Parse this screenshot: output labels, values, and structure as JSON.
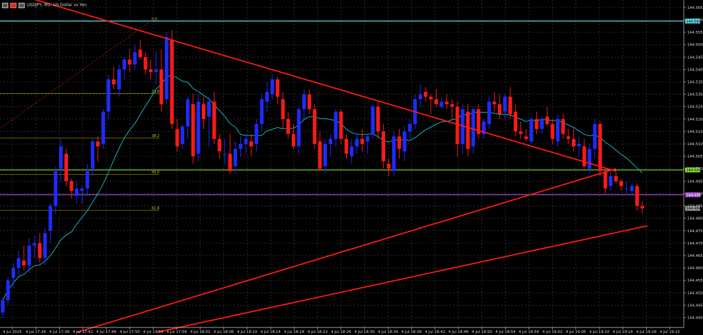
{
  "window": {
    "title": "USDJPY, M1:  US Dollar vs Yen"
  },
  "colors": {
    "background": "#000000",
    "grid": "#4a4a4a",
    "bull_candle": "#1f2bff",
    "bear_candle": "#ff1a1a",
    "moving_average": "#18b6c0",
    "trendline": "#ff1a1a",
    "fib_line": "#8a8500",
    "fib_label": "#d6cf3a",
    "line_cyan": "#5ad8e6",
    "line_green": "#86e33a",
    "line_purple": "#a44ecf",
    "axis_text": "#d9d9d9"
  },
  "chart_data": {
    "type": "candlestick",
    "symbol": "USDJPY",
    "timeframe": "M1",
    "xlabel": "",
    "ylabel": "",
    "ylim": [
      144.436,
      144.568
    ],
    "y_ticks": [
      "144.440",
      "144.445",
      "144.450",
      "144.455",
      "144.460",
      "144.465",
      "144.470",
      "144.475",
      "144.480",
      "144.485",
      "144.490",
      "144.495",
      "144.500",
      "144.505",
      "144.510",
      "144.515",
      "144.520",
      "144.525",
      "144.530",
      "144.535",
      "144.540",
      "144.545",
      "144.550",
      "144.555",
      "144.560",
      "144.565"
    ],
    "x_ticks": [
      "4 Jul 2025",
      "4 Jul 17:34",
      "4 Jul 17:38",
      "4 Jul 17:42",
      "4 Jul 17:46",
      "4 Jul 17:50",
      "4 Jul 17:54",
      "4 Jul 17:58",
      "4 Jul 18:02",
      "4 Jul 18:06",
      "4 Jul 18:10",
      "4 Jul 18:14",
      "4 Jul 18:18",
      "4 Jul 18:22",
      "4 Jul 18:26",
      "4 Jul 18:30",
      "4 Jul 18:34",
      "4 Jul 18:38",
      "4 Jul 18:42",
      "4 Jul 18:46",
      "4 Jul 18:50",
      "4 Jul 18:54",
      "4 Jul 18:58",
      "4 Jul 19:02",
      "4 Jul 19:06",
      "4 Jul 19:10",
      "4 Jul 19:14",
      "4 Jul 19:18",
      "4 Jul 19:22"
    ],
    "price_tags": [
      {
        "label": "144.560",
        "value": 144.5595,
        "bg": "#5ad8e6",
        "fg": "#000000"
      },
      {
        "label": "144.500",
        "value": 144.4995,
        "bg": "#86e33a",
        "fg": "#000000"
      },
      {
        "label": "144.490",
        "value": 144.4895,
        "bg": "#a44ecf",
        "fg": "#ffffff"
      },
      {
        "label": "144.484",
        "value": 144.484,
        "bg": "#9a9a9a",
        "fg": "#000000"
      }
    ],
    "horizontal_lines": [
      {
        "name": "cyan-level",
        "value": 144.5595,
        "color": "#5ad8e6"
      },
      {
        "name": "green-level",
        "value": 144.4995,
        "color": "#86e33a"
      },
      {
        "name": "purple-level",
        "value": 144.4895,
        "color": "#a44ecf"
      }
    ],
    "fibonacci": {
      "high": 144.5595,
      "low": 144.436,
      "levels": [
        {
          "label": "0.0",
          "ratio": 0.0
        },
        {
          "label": "23.6",
          "ratio": 0.236
        },
        {
          "label": "38.2",
          "ratio": 0.382
        },
        {
          "label": "50.0",
          "ratio": 0.5
        },
        {
          "label": "61.8",
          "ratio": 0.618
        }
      ]
    },
    "trendlines": [
      {
        "name": "descending-trendline",
        "points": [
          [
            0,
            144.572
          ],
          [
            116,
            144.499
          ]
        ]
      },
      {
        "name": "rising-trendline-upper",
        "points": [
          [
            14,
            144.434
          ],
          [
            116,
            144.5
          ]
        ]
      },
      {
        "name": "rising-trendline-lower",
        "points": [
          [
            29,
            144.434
          ],
          [
            122,
            144.477
          ]
        ]
      },
      {
        "name": "fib-diagonal",
        "points": [
          [
            -1,
            144.5155
          ],
          [
            28,
            144.5595
          ]
        ]
      }
    ],
    "ma_period": 14,
    "candles_ohlc": [
      [
        144.442,
        144.448,
        144.44,
        144.447
      ],
      [
        144.447,
        144.456,
        144.445,
        144.455
      ],
      [
        144.456,
        144.462,
        144.452,
        144.46
      ],
      [
        144.46,
        144.467,
        144.457,
        144.464
      ],
      [
        144.463,
        144.469,
        144.459,
        144.461
      ],
      [
        144.461,
        144.472,
        144.458,
        144.469
      ],
      [
        144.469,
        144.473,
        144.464,
        144.47
      ],
      [
        144.47,
        144.474,
        144.462,
        144.464
      ],
      [
        144.464,
        144.476,
        144.461,
        144.474
      ],
      [
        144.475,
        144.486,
        144.47,
        144.485
      ],
      [
        144.485,
        144.501,
        144.482,
        144.499
      ],
      [
        144.5,
        144.512,
        144.495,
        144.509
      ],
      [
        144.506,
        144.508,
        144.493,
        144.495
      ],
      [
        144.495,
        144.496,
        144.488,
        144.491
      ],
      [
        144.489,
        144.495,
        144.486,
        144.492
      ],
      [
        144.491,
        144.493,
        144.486,
        144.492
      ],
      [
        144.492,
        144.502,
        144.489,
        144.499
      ],
      [
        144.5,
        144.512,
        144.497,
        144.511
      ],
      [
        144.511,
        144.513,
        144.503,
        144.509
      ],
      [
        144.51,
        144.524,
        144.508,
        144.523
      ],
      [
        144.523,
        144.538,
        144.52,
        144.536
      ],
      [
        144.536,
        144.541,
        144.532,
        144.534
      ],
      [
        144.532,
        144.542,
        144.529,
        144.54
      ],
      [
        144.54,
        144.545,
        144.536,
        144.544
      ],
      [
        144.544,
        144.548,
        144.539,
        144.542
      ],
      [
        144.542,
        144.55,
        144.54,
        144.547
      ],
      [
        144.548,
        144.552,
        144.544,
        144.545
      ],
      [
        144.545,
        144.547,
        144.538,
        144.54
      ],
      [
        144.54,
        144.544,
        144.536,
        144.539
      ],
      [
        144.539,
        144.547,
        144.534,
        144.54
      ],
      [
        144.54,
        144.548,
        144.523,
        144.526
      ],
      [
        144.528,
        144.555,
        144.526,
        144.553
      ],
      [
        144.552,
        144.556,
        144.516,
        144.518
      ],
      [
        144.516,
        144.52,
        144.507,
        144.509
      ],
      [
        144.51,
        144.518,
        144.508,
        144.517
      ],
      [
        144.517,
        144.529,
        144.512,
        144.528
      ],
      [
        144.526,
        144.53,
        144.502,
        144.505
      ],
      [
        144.506,
        144.53,
        144.503,
        144.527
      ],
      [
        144.526,
        144.529,
        144.516,
        144.52
      ],
      [
        144.521,
        144.529,
        144.509,
        144.527
      ],
      [
        144.527,
        144.531,
        144.51,
        144.512
      ],
      [
        144.512,
        144.514,
        144.504,
        144.507
      ],
      [
        144.506,
        144.512,
        144.502,
        144.506
      ],
      [
        144.506,
        144.514,
        144.498,
        144.499
      ],
      [
        144.501,
        144.511,
        144.498,
        144.508
      ],
      [
        144.508,
        144.513,
        144.505,
        144.51
      ],
      [
        144.51,
        144.514,
        144.506,
        144.512
      ],
      [
        144.511,
        144.514,
        144.505,
        144.509
      ],
      [
        144.51,
        144.52,
        144.507,
        144.518
      ],
      [
        144.518,
        144.53,
        144.515,
        144.528
      ],
      [
        144.527,
        144.535,
        144.523,
        144.531
      ],
      [
        144.53,
        144.538,
        144.528,
        144.536
      ],
      [
        144.536,
        144.537,
        144.526,
        144.529
      ],
      [
        144.528,
        144.531,
        144.516,
        144.52
      ],
      [
        144.52,
        144.523,
        144.512,
        144.514
      ],
      [
        144.514,
        144.518,
        144.508,
        144.509
      ],
      [
        144.509,
        144.525,
        144.506,
        144.524
      ],
      [
        144.524,
        144.532,
        144.52,
        144.53
      ],
      [
        144.53,
        144.532,
        144.522,
        144.524
      ],
      [
        144.524,
        144.526,
        144.508,
        144.51
      ],
      [
        144.511,
        144.515,
        144.499,
        144.5
      ],
      [
        144.501,
        144.512,
        144.498,
        144.51
      ],
      [
        144.51,
        144.514,
        144.505,
        144.512
      ],
      [
        144.512,
        144.524,
        144.509,
        144.523
      ],
      [
        144.523,
        144.524,
        144.51,
        144.512
      ],
      [
        144.512,
        144.514,
        144.504,
        144.506
      ],
      [
        144.505,
        144.512,
        144.502,
        144.509
      ],
      [
        144.509,
        144.514,
        144.506,
        144.512
      ],
      [
        144.512,
        144.516,
        144.507,
        144.51
      ],
      [
        144.511,
        144.514,
        144.506,
        144.513
      ],
      [
        144.514,
        144.526,
        144.512,
        144.525
      ],
      [
        144.525,
        144.527,
        144.512,
        144.515
      ],
      [
        144.515,
        144.518,
        144.5,
        144.503
      ],
      [
        144.502,
        144.504,
        144.497,
        144.5
      ],
      [
        144.499,
        144.515,
        144.497,
        144.513
      ],
      [
        144.513,
        144.516,
        144.504,
        144.508
      ],
      [
        144.507,
        144.517,
        144.503,
        144.515
      ],
      [
        144.515,
        144.52,
        144.512,
        144.518
      ],
      [
        144.518,
        144.53,
        144.516,
        144.528
      ],
      [
        144.528,
        144.534,
        144.525,
        144.53
      ],
      [
        144.531,
        144.533,
        144.527,
        144.529
      ],
      [
        144.529,
        144.53,
        144.522,
        144.528
      ],
      [
        144.528,
        144.532,
        144.525,
        144.526
      ],
      [
        144.525,
        144.529,
        144.524,
        144.527
      ],
      [
        144.527,
        144.53,
        144.524,
        144.526
      ],
      [
        144.526,
        144.528,
        144.52,
        144.525
      ],
      [
        144.525,
        144.527,
        144.505,
        144.51
      ],
      [
        144.51,
        144.526,
        144.506,
        144.524
      ],
      [
        144.523,
        144.526,
        144.505,
        144.508
      ],
      [
        144.509,
        144.525,
        144.506,
        144.524
      ],
      [
        144.524,
        144.526,
        144.512,
        144.514
      ],
      [
        144.514,
        144.52,
        144.512,
        144.519
      ],
      [
        144.518,
        144.529,
        144.516,
        144.527
      ],
      [
        144.527,
        144.531,
        144.523,
        144.526
      ],
      [
        144.526,
        144.53,
        144.52,
        144.522
      ],
      [
        144.523,
        144.53,
        144.52,
        144.529
      ],
      [
        144.529,
        144.533,
        144.52,
        144.522
      ],
      [
        144.523,
        144.526,
        144.513,
        144.515
      ],
      [
        144.515,
        144.519,
        144.512,
        144.514
      ],
      [
        144.513,
        144.516,
        144.511,
        144.512
      ],
      [
        144.511,
        144.521,
        144.51,
        144.52
      ],
      [
        144.52,
        144.523,
        144.514,
        144.516
      ],
      [
        144.516,
        144.521,
        144.514,
        144.52
      ],
      [
        144.521,
        144.525,
        144.517,
        144.518
      ],
      [
        144.518,
        144.52,
        144.51,
        144.512
      ],
      [
        144.511,
        144.522,
        144.509,
        144.52
      ],
      [
        144.52,
        144.522,
        144.512,
        144.514
      ],
      [
        144.513,
        144.516,
        144.51,
        144.512
      ],
      [
        144.512,
        144.516,
        144.507,
        144.509
      ],
      [
        144.509,
        144.513,
        144.505,
        144.51
      ],
      [
        144.509,
        144.512,
        144.5,
        144.501
      ],
      [
        144.5,
        144.51,
        144.498,
        144.508
      ],
      [
        144.508,
        144.52,
        144.504,
        144.518
      ],
      [
        144.518,
        144.519,
        144.497,
        144.499
      ],
      [
        144.499,
        144.5,
        144.49,
        144.492
      ],
      [
        144.493,
        144.499,
        144.491,
        144.497
      ],
      [
        144.497,
        144.499,
        144.494,
        144.495
      ],
      [
        144.495,
        144.496,
        144.491,
        144.493
      ],
      [
        144.492,
        144.495,
        144.49,
        144.492
      ],
      [
        144.491,
        144.494,
        144.489,
        144.493
      ],
      [
        144.493,
        144.494,
        144.483,
        144.485
      ],
      [
        144.485,
        144.487,
        144.482,
        144.484
      ]
    ]
  }
}
